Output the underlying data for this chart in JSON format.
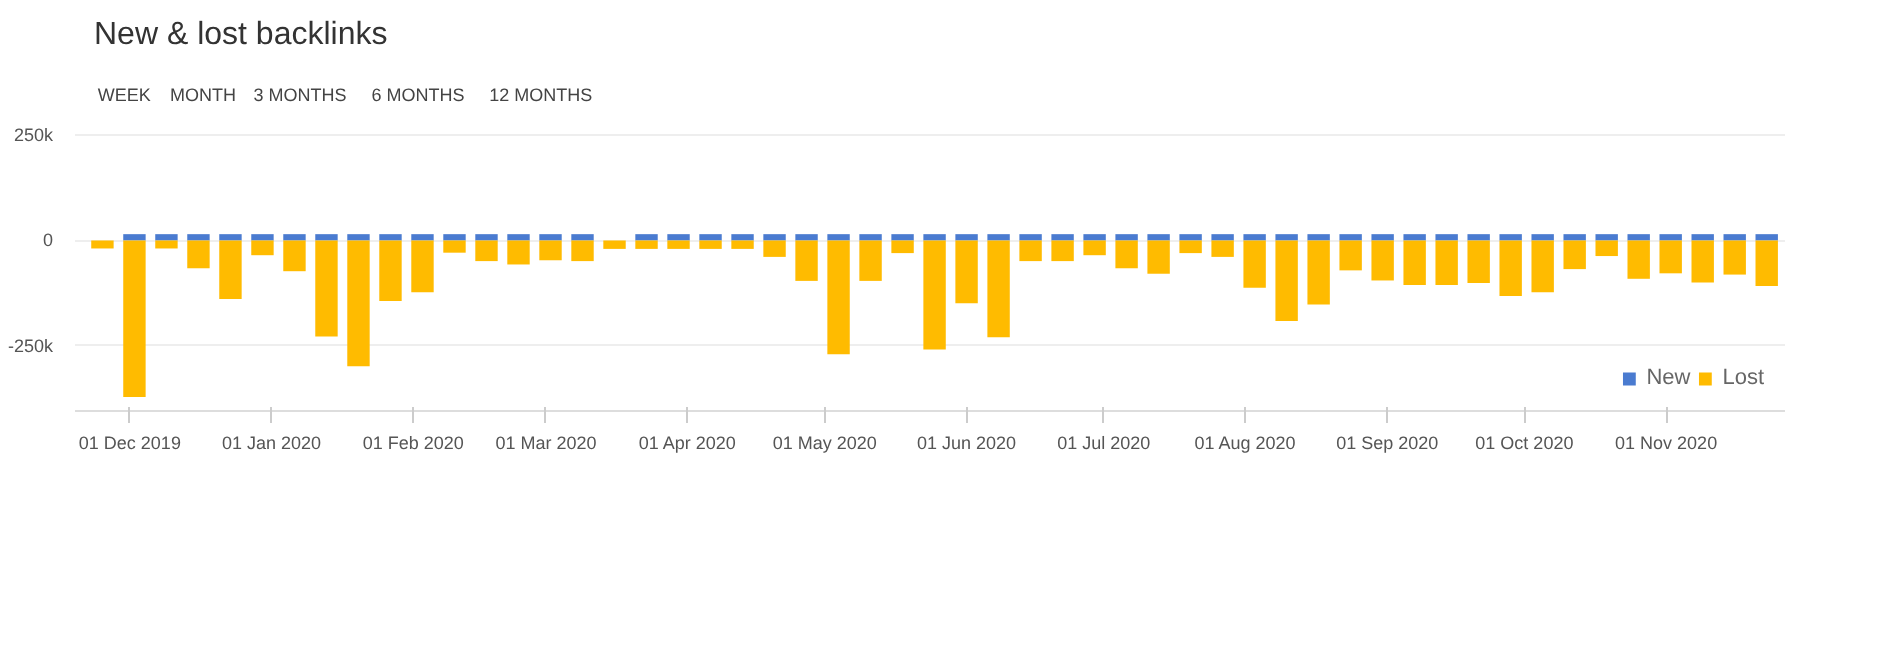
{
  "chart_data": {
    "type": "bar",
    "title": "New & lost backlinks",
    "annotations": [
      "WEEK",
      "MONTH",
      "3 MONTHS",
      "6 MONTHS",
      "12 MONTHS"
    ],
    "x": [
      "2019-11-25",
      "2019-12-02",
      "2019-12-09",
      "2019-12-16",
      "2019-12-23",
      "2019-12-30",
      "2020-01-06",
      "2020-01-13",
      "2020-01-20",
      "2020-01-27",
      "2020-02-03",
      "2020-02-10",
      "2020-02-17",
      "2020-02-24",
      "2020-03-02",
      "2020-03-09",
      "2020-03-16",
      "2020-03-23",
      "2020-03-30",
      "2020-04-06",
      "2020-04-13",
      "2020-04-20",
      "2020-04-27",
      "2020-05-04",
      "2020-05-11",
      "2020-05-18",
      "2020-05-25",
      "2020-06-01",
      "2020-06-08",
      "2020-06-15",
      "2020-06-22",
      "2020-06-29",
      "2020-07-06",
      "2020-07-13",
      "2020-07-20",
      "2020-07-27",
      "2020-08-03",
      "2020-08-10",
      "2020-08-17",
      "2020-08-24",
      "2020-08-31",
      "2020-09-07",
      "2020-09-14",
      "2020-09-21",
      "2020-09-28",
      "2020-10-05",
      "2020-10-12",
      "2020-10-19",
      "2020-10-26",
      "2020-11-02",
      "2020-11-09",
      "2020-11-16",
      "2020-11-23"
    ],
    "stacked": true,
    "series": [
      {
        "name": "New",
        "color": "#4a7bd0",
        "values": [
          null,
          15000,
          15000,
          15000,
          15000,
          15000,
          15000,
          15000,
          15000,
          15000,
          15000,
          15000,
          15000,
          15000,
          15000,
          15000,
          null,
          15000,
          15000,
          15000,
          15000,
          15000,
          15000,
          15000,
          15000,
          15000,
          15000,
          15000,
          15000,
          15000,
          15000,
          15000,
          15000,
          15000,
          15000,
          15000,
          15000,
          15000,
          15000,
          15000,
          15000,
          15000,
          15000,
          15000,
          15000,
          15000,
          15000,
          15000,
          15000,
          15000,
          15000,
          15000,
          15000
        ]
      },
      {
        "name": "Lost",
        "color": "#ffbb00",
        "values": [
          -19000,
          -372000,
          -19000,
          -66000,
          -139000,
          -35000,
          -73000,
          -228000,
          -299000,
          -144000,
          -123000,
          -29000,
          -49000,
          -57000,
          -47000,
          -49000,
          -20000,
          -20000,
          -20000,
          -20000,
          -20000,
          -39000,
          -96000,
          -270000,
          -96000,
          -30000,
          -259000,
          -149000,
          -230000,
          -49000,
          -49000,
          -35000,
          -66000,
          -79000,
          -30000,
          -39000,
          -112000,
          -191000,
          -152000,
          -71000,
          -95000,
          -106000,
          -106000,
          -101000,
          -132000,
          -123000,
          -68000,
          -37000,
          -91000,
          -78000,
          -100000,
          -81000,
          -108000
        ]
      }
    ],
    "xlim": [
      "2019-11-19",
      "2020-11-27"
    ],
    "xticks": [
      {
        "value": "2019-12-01",
        "label": "01 Dec 2019"
      },
      {
        "value": "2020-01-01",
        "label": "01 Jan 2020"
      },
      {
        "value": "2020-02-01",
        "label": "01 Feb 2020"
      },
      {
        "value": "2020-03-01",
        "label": "01 Mar 2020"
      },
      {
        "value": "2020-04-01",
        "label": "01 Apr 2020"
      },
      {
        "value": "2020-05-01",
        "label": "01 May 2020"
      },
      {
        "value": "2020-06-01",
        "label": "01 Jun 2020"
      },
      {
        "value": "2020-07-01",
        "label": "01 Jul 2020"
      },
      {
        "value": "2020-08-01",
        "label": "01 Aug 2020"
      },
      {
        "value": "2020-09-01",
        "label": "01 Sep 2020"
      },
      {
        "value": "2020-10-01",
        "label": "01 Oct 2020"
      },
      {
        "value": "2020-11-01",
        "label": "01 Nov 2020"
      }
    ],
    "ylim": [
      -405000,
      260000
    ],
    "yticks": [
      {
        "value": 250000,
        "label": "250k"
      },
      {
        "value": 0,
        "label": "0"
      },
      {
        "value": -250000,
        "label": "-250k"
      }
    ],
    "grid": "y",
    "legend": "bottom"
  }
}
